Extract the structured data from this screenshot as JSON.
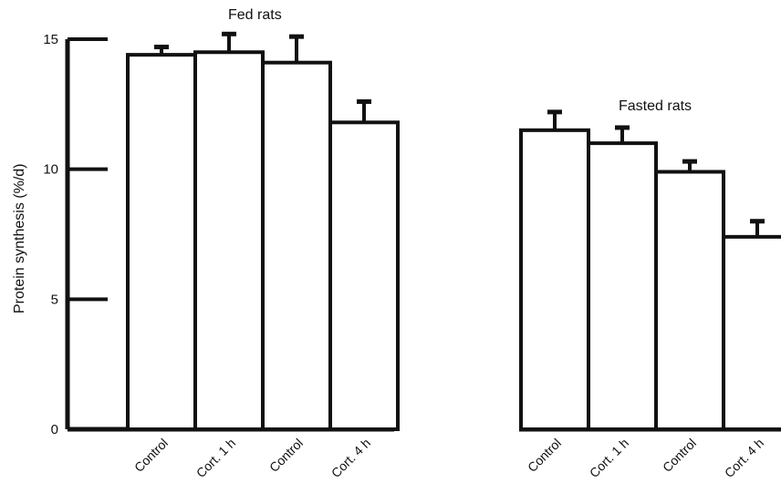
{
  "chart_data": {
    "type": "bar",
    "ylabel": "Protein synthesis (%/d)",
    "ylim": [
      0,
      15
    ],
    "yticks": [
      "0",
      "5",
      "10",
      "15"
    ],
    "categories": [
      "Control",
      "Cort. 1 h",
      "Control",
      "Cort. 4 h"
    ],
    "groups": [
      {
        "title": "Fed rats",
        "values": [
          14.4,
          14.5,
          14.1,
          11.8
        ],
        "errors": [
          0.3,
          0.7,
          1.0,
          0.8
        ]
      },
      {
        "title": "Fasted rats",
        "values": [
          11.5,
          11.0,
          9.9,
          7.4
        ],
        "errors": [
          0.7,
          0.6,
          0.4,
          0.6
        ]
      }
    ]
  }
}
